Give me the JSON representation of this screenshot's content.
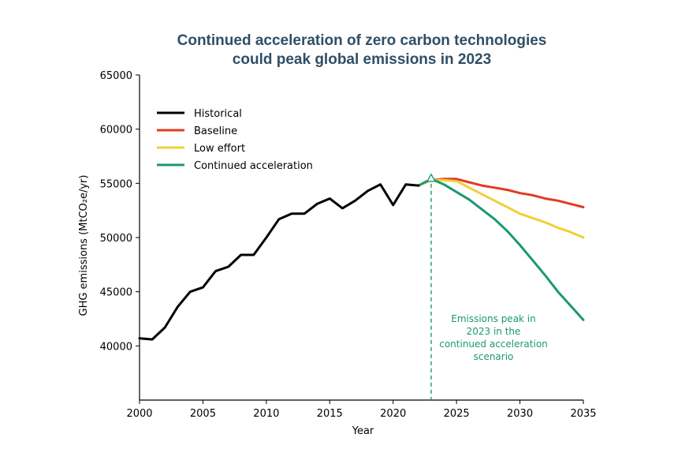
{
  "chart_data": {
    "type": "line",
    "title_line1": "Continued acceleration of zero carbon technologies",
    "title_line2": "could peak global emissions in 2023",
    "xlabel": "Year",
    "ylabel": "GHG emissions (MtCO₂e/yr)",
    "xlim": [
      2000,
      2035
    ],
    "ylim": [
      35000,
      65000
    ],
    "xticks": [
      2000,
      2005,
      2010,
      2015,
      2020,
      2025,
      2030,
      2035
    ],
    "yticks": [
      40000,
      45000,
      50000,
      55000,
      60000,
      65000
    ],
    "legend_position": "upper-left",
    "series": [
      {
        "name": "Historical",
        "color": "#000000",
        "x": [
          2000,
          2001,
          2002,
          2003,
          2004,
          2005,
          2006,
          2007,
          2008,
          2009,
          2010,
          2011,
          2012,
          2013,
          2014,
          2015,
          2016,
          2017,
          2018,
          2019,
          2020,
          2021,
          2022
        ],
        "y": [
          40700,
          40600,
          41700,
          43600,
          45000,
          45400,
          46900,
          47300,
          48400,
          48400,
          50000,
          51700,
          52200,
          52200,
          53100,
          53600,
          52700,
          53400,
          54300,
          54900,
          53000,
          54900,
          54800
        ]
      },
      {
        "name": "Baseline",
        "color": "#e03c22",
        "x": [
          2022,
          2023,
          2024,
          2025,
          2026,
          2027,
          2028,
          2029,
          2030,
          2031,
          2032,
          2033,
          2034,
          2035
        ],
        "y": [
          54800,
          55300,
          55400,
          55400,
          55100,
          54800,
          54600,
          54400,
          54100,
          53900,
          53600,
          53400,
          53100,
          52800
        ]
      },
      {
        "name": "Low effort",
        "color": "#f0d03a",
        "x": [
          2022,
          2023,
          2024,
          2025,
          2026,
          2027,
          2028,
          2029,
          2030,
          2031,
          2032,
          2033,
          2034,
          2035
        ],
        "y": [
          54800,
          55300,
          55300,
          55200,
          54600,
          54000,
          53400,
          52800,
          52200,
          51800,
          51400,
          50900,
          50500,
          50000
        ]
      },
      {
        "name": "Continued acceleration",
        "color": "#1a9a6c",
        "x": [
          2022,
          2023,
          2024,
          2025,
          2026,
          2027,
          2028,
          2029,
          2030,
          2031,
          2032,
          2033,
          2034,
          2035
        ],
        "y": [
          54800,
          55400,
          54900,
          54200,
          53500,
          52600,
          51700,
          50600,
          49300,
          47900,
          46500,
          45000,
          43700,
          42400
        ]
      }
    ],
    "annotation": {
      "x": 2023,
      "y_peak": 55400,
      "lines": [
        "Emissions peak in",
        "2023 in the",
        "continued acceleration",
        "scenario"
      ],
      "color": "#1a9a6c"
    }
  }
}
